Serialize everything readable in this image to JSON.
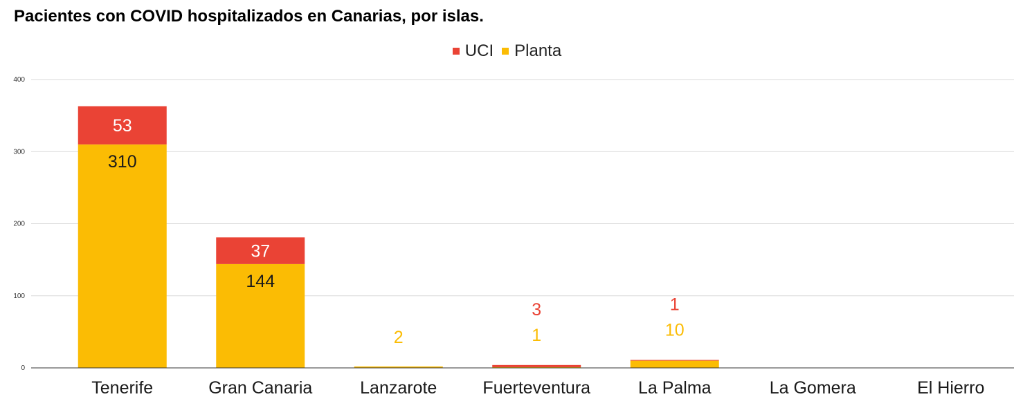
{
  "chart_data": {
    "type": "bar",
    "stacked": true,
    "title": "Pacientes con COVID hospitalizados en Canarias, por islas.",
    "categories": [
      "Tenerife",
      "Gran Canaria",
      "Lanzarote",
      "Fuerteventura",
      "La Palma",
      "La Gomera",
      "El Hierro"
    ],
    "series": [
      {
        "name": "Planta",
        "color": "#FBBC04",
        "values": [
          310,
          144,
          2,
          1,
          10,
          0,
          0
        ],
        "labels": [
          "310",
          "144",
          "2",
          "1",
          "10",
          "",
          ""
        ]
      },
      {
        "name": "UCI",
        "color": "#EA4335",
        "values": [
          53,
          37,
          0,
          3,
          1,
          0,
          0
        ],
        "labels": [
          "53",
          "37",
          "",
          "3",
          "1",
          "",
          ""
        ]
      }
    ],
    "legend_order": [
      "UCI",
      "Planta"
    ],
    "legend_position": "top-center",
    "ylim": [
      0,
      400
    ],
    "yticks": [
      "0",
      "100",
      "200",
      "300",
      "400"
    ],
    "grid": true,
    "xlabel": "",
    "ylabel": ""
  }
}
